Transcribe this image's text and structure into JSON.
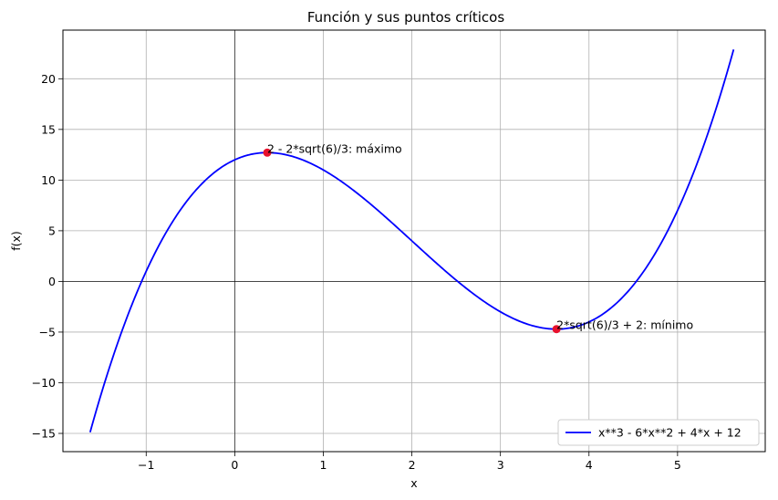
{
  "chart_data": {
    "type": "line",
    "title": "Función y sus puntos críticos",
    "xlabel": "x",
    "ylabel": "f(x)",
    "xlim": [
      -1.94,
      5.99
    ],
    "ylim": [
      -16.8,
      24.8
    ],
    "x_ticks": [
      -1,
      0,
      1,
      2,
      3,
      4,
      5
    ],
    "y_ticks": [
      -15,
      -10,
      -5,
      0,
      5,
      10,
      15,
      20
    ],
    "grid": true,
    "legend_position": "bottom-right",
    "series": [
      {
        "name": "x**3 - 6*x**2 + 4*x + 12",
        "color": "#0000ff",
        "expression": "x**3 - 6*x**2 + 4*x + 12",
        "x_range": [
          -1.633,
          5.633
        ],
        "sample_points": [
          {
            "x": -1.633,
            "y": -14.88
          },
          {
            "x": -1.0,
            "y": 1.0
          },
          {
            "x": 0.0,
            "y": 12.0
          },
          {
            "x": 0.367,
            "y": 12.71
          },
          {
            "x": 1.0,
            "y": 11.0
          },
          {
            "x": 2.0,
            "y": 4.0
          },
          {
            "x": 3.0,
            "y": -3.0
          },
          {
            "x": 3.633,
            "y": -4.71
          },
          {
            "x": 4.0,
            "y": -4.0
          },
          {
            "x": 5.0,
            "y": 7.0
          },
          {
            "x": 5.633,
            "y": 22.88
          }
        ]
      }
    ],
    "critical_points": [
      {
        "x": 0.367,
        "y": 12.71,
        "label": "2 - 2*sqrt(6)/3: máximo",
        "color": "#e8112d"
      },
      {
        "x": 3.633,
        "y": -4.71,
        "label": "2*sqrt(6)/3 + 2: mínimo",
        "color": "#e8112d"
      }
    ]
  }
}
